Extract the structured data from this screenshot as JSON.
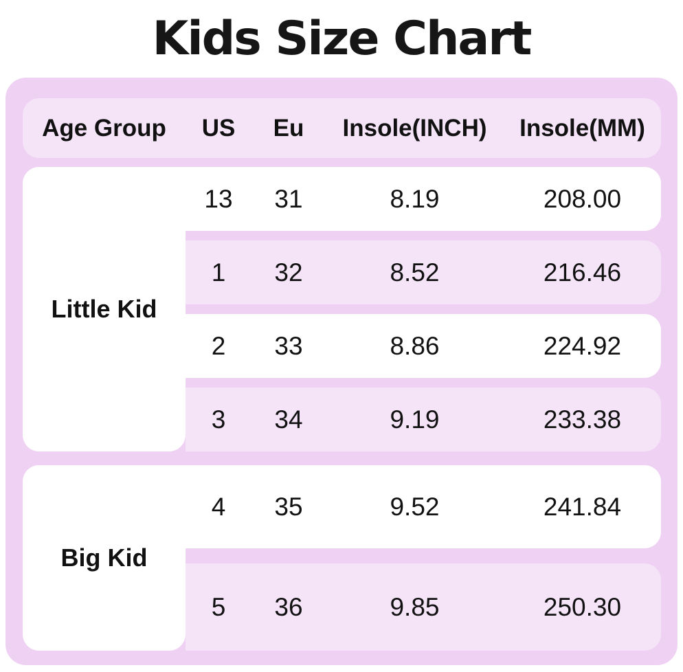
{
  "title": "Kids Size Chart",
  "colors": {
    "panel": "#EFD2F3",
    "row": "#F5E3F8",
    "text": "#111111",
    "white": "#FFFFFF"
  },
  "table": {
    "headers": [
      "Age Group",
      "US",
      "Eu",
      "Insole(INCH)",
      "Insole(MM)"
    ],
    "groups": [
      {
        "age_group": "Little Kid",
        "rows": [
          {
            "us": "13",
            "eu": "31",
            "insole_inch": "8.19",
            "insole_mm": "208.00"
          },
          {
            "us": "1",
            "eu": "32",
            "insole_inch": "8.52",
            "insole_mm": "216.46"
          },
          {
            "us": "2",
            "eu": "33",
            "insole_inch": "8.86",
            "insole_mm": "224.92"
          },
          {
            "us": "3",
            "eu": "34",
            "insole_inch": "9.19",
            "insole_mm": "233.38"
          }
        ]
      },
      {
        "age_group": "Big Kid",
        "rows": [
          {
            "us": "4",
            "eu": "35",
            "insole_inch": "9.52",
            "insole_mm": "241.84"
          },
          {
            "us": "5",
            "eu": "36",
            "insole_inch": "9.85",
            "insole_mm": "250.30"
          }
        ]
      }
    ]
  },
  "chart_data": {
    "type": "table",
    "title": "Kids Size Chart",
    "columns": [
      "Age Group",
      "US",
      "Eu",
      "Insole(INCH)",
      "Insole(MM)"
    ],
    "rows": [
      [
        "Little Kid",
        "13",
        "31",
        "8.19",
        "208.00"
      ],
      [
        "Little Kid",
        "1",
        "32",
        "8.52",
        "216.46"
      ],
      [
        "Little Kid",
        "2",
        "33",
        "8.86",
        "224.92"
      ],
      [
        "Little Kid",
        "3",
        "34",
        "9.19",
        "233.38"
      ],
      [
        "Big Kid",
        "4",
        "35",
        "9.52",
        "241.84"
      ],
      [
        "Big Kid",
        "5",
        "36",
        "9.85",
        "250.30"
      ]
    ]
  }
}
